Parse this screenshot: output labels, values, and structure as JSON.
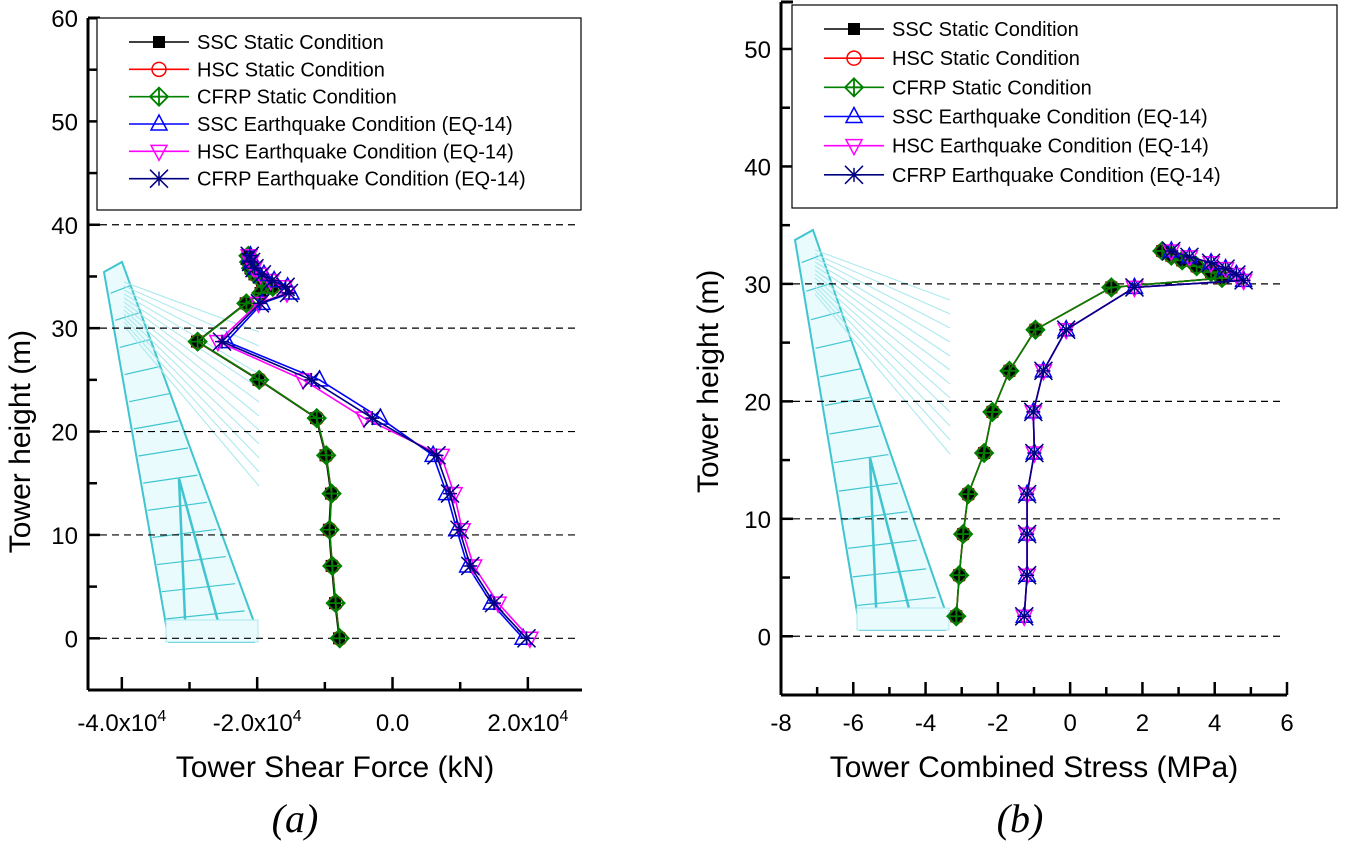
{
  "figure": {
    "panels": [
      "(a)",
      "(b)"
    ]
  },
  "legend": [
    {
      "name": "SSC Static Condition",
      "color": "#000000",
      "marker": "filled-square"
    },
    {
      "name": "HSC Static Condition",
      "color": "#ff0000",
      "marker": "open-circle"
    },
    {
      "name": "CFRP Static Condition",
      "color": "#008000",
      "marker": "crossed-diamond"
    },
    {
      "name": "SSC Earthquake Condition (EQ-14)",
      "color": "#0000ff",
      "marker": "up-triangle"
    },
    {
      "name": "HSC Earthquake Condition (EQ-14)",
      "color": "#ff00ff",
      "marker": "down-triangle"
    },
    {
      "name": "CFRP Earthquake Condition (EQ-14)",
      "color": "#000080",
      "marker": "star-x"
    }
  ],
  "chart_data": [
    {
      "type": "line",
      "panel": "(a)",
      "title": "",
      "xlabel": "Tower Shear Force (kN)",
      "ylabel": "Tower height (m)",
      "xlim": [
        -45000,
        28000
      ],
      "ylim": [
        -5,
        60
      ],
      "xticks": [
        -40000,
        -30000,
        -20000,
        -10000,
        0,
        10000,
        20000
      ],
      "xtick_labels": [
        "-4.0x10^4",
        "",
        "-2.0x10^4",
        "",
        "0.0",
        "",
        "2.0x10^4"
      ],
      "yticks": [
        0,
        5,
        10,
        15,
        20,
        25,
        30,
        35,
        40,
        45,
        50,
        55,
        60
      ],
      "ytick_labels": [
        "0",
        "",
        "10",
        "",
        "20",
        "",
        "30",
        "",
        "40",
        "",
        "50",
        "",
        "60"
      ],
      "grid": "horizontal dashed at 0,10,20,30,40",
      "legend_position": "top-right",
      "series": [
        {
          "name": "SSC Static Condition",
          "y": [
            0,
            3.4,
            7,
            10.5,
            14,
            17.7,
            21.3,
            25,
            28.7,
            32.4,
            33.4,
            34.0,
            34.6,
            35.2,
            35.8,
            36.4,
            37.0
          ],
          "x": [
            -7900,
            -8500,
            -9000,
            -9400,
            -9100,
            -9900,
            -11300,
            -19800,
            -28900,
            -21700,
            -19500,
            -17800,
            -19300,
            -20400,
            -21000,
            -21300,
            -21400
          ]
        },
        {
          "name": "HSC Static Condition",
          "y": [
            0,
            3.4,
            7,
            10.5,
            14,
            17.7,
            21.3,
            25,
            28.7,
            32.4,
            33.4,
            34.0,
            34.6,
            35.2,
            35.8,
            36.4,
            37.0
          ],
          "x": [
            -7800,
            -8400,
            -8900,
            -9300,
            -9000,
            -9800,
            -11200,
            -19700,
            -28800,
            -21600,
            -19400,
            -17700,
            -19200,
            -20300,
            -20900,
            -21200,
            -21300
          ]
        },
        {
          "name": "CFRP Static Condition",
          "y": [
            0,
            3.4,
            7,
            10.5,
            14,
            17.7,
            21.3,
            25,
            28.7,
            32.4,
            33.4,
            34.0,
            34.6,
            35.2,
            35.8,
            36.4,
            37.0
          ],
          "x": [
            -7800,
            -8400,
            -8900,
            -9300,
            -9000,
            -9800,
            -11200,
            -19700,
            -28800,
            -21600,
            -19400,
            -17700,
            -19200,
            -20300,
            -20900,
            -21200,
            -21300
          ]
        },
        {
          "name": "SSC Earthquake Condition (EQ-14)",
          "y": [
            0,
            3.4,
            7,
            10.5,
            14,
            17.7,
            21.3,
            25,
            28.7,
            32.4,
            33.4,
            34.0,
            34.6,
            35.2,
            35.8,
            36.4,
            37.0
          ],
          "x": [
            19300,
            14600,
            11100,
            9500,
            8000,
            6000,
            -1800,
            -10800,
            -24500,
            -19300,
            -15000,
            -15500,
            -17500,
            -19000,
            -20200,
            -20800,
            -21000
          ]
        },
        {
          "name": "HSC Earthquake Condition (EQ-14)",
          "y": [
            0,
            3.4,
            7,
            10.5,
            14,
            17.7,
            21.3,
            25,
            28.7,
            32.4,
            33.4,
            34.0,
            34.6,
            35.2,
            35.8,
            36.4,
            37.0
          ],
          "x": [
            20300,
            15600,
            12000,
            10300,
            9100,
            7200,
            -4200,
            -13200,
            -25800,
            -19800,
            -15600,
            -16000,
            -18000,
            -19500,
            -20500,
            -21000,
            -21200
          ]
        },
        {
          "name": "CFRP Earthquake Condition (EQ-14)",
          "y": [
            0,
            3.4,
            7,
            10.5,
            14,
            17.7,
            21.3,
            25,
            28.7,
            32.4,
            33.4,
            34.0,
            34.6,
            35.2,
            35.8,
            36.4,
            37.0
          ],
          "x": [
            19800,
            15000,
            11500,
            9900,
            8500,
            6500,
            -3000,
            -12000,
            -25200,
            -19600,
            -15300,
            -15800,
            -17800,
            -19300,
            -20400,
            -20900,
            -21100
          ]
        }
      ]
    },
    {
      "type": "line",
      "panel": "(b)",
      "title": "",
      "xlabel": "Tower Combined Stress (MPa)",
      "ylabel": "Tower height (m)",
      "xlim": [
        -8,
        6
      ],
      "ylim": [
        -5,
        54
      ],
      "xticks": [
        -8,
        -7,
        -6,
        -5,
        -4,
        -3,
        -2,
        -1,
        0,
        1,
        2,
        3,
        4,
        5,
        6
      ],
      "xtick_labels": [
        "-8",
        "",
        "-6",
        "",
        "-4",
        "",
        "-2",
        "",
        "0",
        "",
        "2",
        "",
        "4",
        "",
        "6"
      ],
      "yticks": [
        0,
        5,
        10,
        15,
        20,
        25,
        30,
        35,
        40,
        45,
        50
      ],
      "ytick_labels": [
        "0",
        "",
        "10",
        "",
        "20",
        "",
        "30",
        "",
        "40",
        "",
        "50"
      ],
      "grid": "horizontal dashed at 0,10,20,30",
      "legend_position": "top-right",
      "series": [
        {
          "name": "SSC Static Condition",
          "y": [
            1.7,
            5.2,
            8.7,
            12.1,
            15.6,
            19.1,
            22.6,
            26.1,
            29.7,
            30.5,
            31.0,
            31.5,
            32.0,
            32.4,
            32.8
          ],
          "x": [
            -3.15,
            -3.07,
            -2.96,
            -2.82,
            -2.38,
            -2.15,
            -1.68,
            -0.96,
            1.14,
            4.2,
            3.9,
            3.5,
            3.1,
            2.8,
            2.55
          ]
        },
        {
          "name": "HSC Static Condition",
          "y": [
            1.7,
            5.2,
            8.7,
            12.1,
            15.6,
            19.1,
            22.6,
            26.1,
            29.7,
            30.5,
            31.0,
            31.5,
            32.0,
            32.4,
            32.8
          ],
          "x": [
            -3.15,
            -3.07,
            -2.96,
            -2.82,
            -2.38,
            -2.15,
            -1.68,
            -0.96,
            1.14,
            4.2,
            3.9,
            3.5,
            3.1,
            2.8,
            2.55
          ]
        },
        {
          "name": "CFRP Static Condition",
          "y": [
            1.7,
            5.2,
            8.7,
            12.1,
            15.6,
            19.1,
            22.6,
            26.1,
            29.7,
            30.5,
            31.0,
            31.5,
            32.0,
            32.4,
            32.8
          ],
          "x": [
            -3.15,
            -3.07,
            -2.96,
            -2.82,
            -2.38,
            -2.15,
            -1.68,
            -0.96,
            1.14,
            4.2,
            3.9,
            3.5,
            3.1,
            2.8,
            2.55
          ]
        },
        {
          "name": "SSC Earthquake Condition (EQ-14)",
          "y": [
            1.7,
            5.2,
            8.7,
            12.1,
            15.6,
            19.1,
            22.6,
            26.1,
            29.7,
            30.3,
            30.8,
            31.3,
            31.8,
            32.3,
            32.8
          ],
          "x": [
            -1.27,
            -1.19,
            -1.19,
            -1.19,
            -0.99,
            -1.02,
            -0.74,
            -0.11,
            1.78,
            4.8,
            4.6,
            4.3,
            3.9,
            3.3,
            2.8
          ]
        },
        {
          "name": "HSC Earthquake Condition (EQ-14)",
          "y": [
            1.7,
            5.2,
            8.7,
            12.1,
            15.6,
            19.1,
            22.6,
            26.1,
            29.7,
            30.3,
            30.8,
            31.3,
            31.8,
            32.3,
            32.8
          ],
          "x": [
            -1.27,
            -1.19,
            -1.19,
            -1.19,
            -0.99,
            -1.02,
            -0.74,
            -0.11,
            1.78,
            4.8,
            4.6,
            4.3,
            3.9,
            3.3,
            2.8
          ]
        },
        {
          "name": "CFRP Earthquake Condition (EQ-14)",
          "y": [
            1.7,
            5.2,
            8.7,
            12.1,
            15.6,
            19.1,
            22.6,
            26.1,
            29.7,
            30.3,
            30.8,
            31.3,
            31.8,
            32.3,
            32.8
          ],
          "x": [
            -1.27,
            -1.19,
            -1.19,
            -1.19,
            -0.99,
            -1.02,
            -0.74,
            -0.11,
            1.78,
            4.8,
            4.6,
            4.3,
            3.9,
            3.3,
            2.8
          ]
        }
      ]
    }
  ]
}
